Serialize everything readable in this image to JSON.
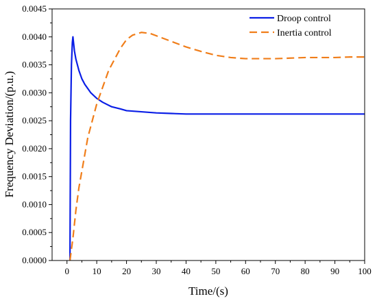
{
  "chart_data": {
    "type": "line",
    "xlabel": "Time/(s)",
    "ylabel": "Frequency Deviation/(p.u.)",
    "xlim": [
      -5,
      100
    ],
    "ylim": [
      0,
      0.0045
    ],
    "xticks": [
      "0",
      "10",
      "20",
      "30",
      "40",
      "50",
      "60",
      "70",
      "80",
      "90",
      "100"
    ],
    "yticks": [
      "0.0000",
      "0.0005",
      "0.0010",
      "0.0015",
      "0.0020",
      "0.0025",
      "0.0030",
      "0.0035",
      "0.0040",
      "0.0045"
    ],
    "legend_position": "top-right",
    "grid": false,
    "series": [
      {
        "name": "Droop control",
        "color": "#0a1ee6",
        "style": "solid",
        "x": [
          1.0,
          1.2,
          1.5,
          1.8,
          2.0,
          2.2,
          2.5,
          3,
          4,
          5,
          6,
          8,
          10,
          12,
          15,
          18,
          20,
          25,
          30,
          35,
          40,
          50,
          60,
          70,
          80,
          90,
          100
        ],
        "y": [
          0.0,
          0.0025,
          0.0035,
          0.0039,
          0.004,
          0.0039,
          0.00375,
          0.0036,
          0.0034,
          0.00325,
          0.00315,
          0.003,
          0.0029,
          0.00283,
          0.00275,
          0.00271,
          0.00268,
          0.00266,
          0.00264,
          0.00263,
          0.00262,
          0.00262,
          0.00262,
          0.00262,
          0.00262,
          0.00262,
          0.00262
        ]
      },
      {
        "name": "Inertia control",
        "color": "#f07d19",
        "style": "dashed",
        "x": [
          1.0,
          2,
          3,
          4,
          5,
          6,
          7,
          8,
          10,
          12,
          14,
          16,
          18,
          20,
          22,
          25,
          28,
          30,
          35,
          40,
          45,
          50,
          55,
          60,
          65,
          70,
          75,
          80,
          85,
          90,
          95,
          100
        ],
        "y": [
          0.0,
          0.0004,
          0.0009,
          0.0013,
          0.0016,
          0.0019,
          0.0022,
          0.0024,
          0.0028,
          0.0031,
          0.0034,
          0.0036,
          0.0038,
          0.00395,
          0.00403,
          0.00408,
          0.00406,
          0.00402,
          0.00392,
          0.00382,
          0.00374,
          0.00367,
          0.00363,
          0.00361,
          0.00361,
          0.00361,
          0.00362,
          0.00363,
          0.00363,
          0.00363,
          0.00364,
          0.00364
        ]
      }
    ]
  }
}
